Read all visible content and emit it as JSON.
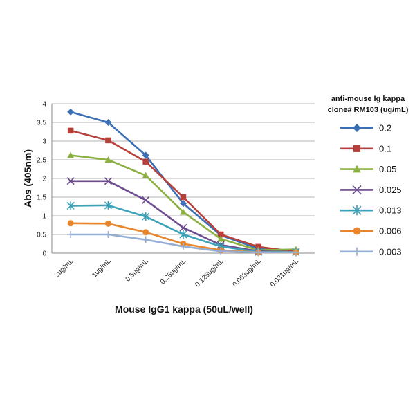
{
  "chart_data": {
    "type": "line",
    "xlabel": "Mouse IgG1 kappa (50uL/well)",
    "ylabel": "Abs (405nm)",
    "ylim": [
      0,
      4
    ],
    "yticks": [
      0,
      0.5,
      1,
      1.5,
      2,
      2.5,
      3,
      3.5,
      4
    ],
    "ytick_labels": [
      "0",
      "0.5",
      "1",
      "1.5",
      "2",
      "2.5",
      "3",
      "3.5",
      "4"
    ],
    "grid": true,
    "categories": [
      "2ug/mL",
      "1ug/mL",
      "0.5ug/mL",
      "0.25ug/mL",
      "0.125ug/mL",
      "0.063ug/mL",
      "0.031ug/mL"
    ],
    "legend": {
      "title_lines": [
        "anti-mouse Ig kappa",
        "clone# RM103 (ug/mL)"
      ],
      "position": "right"
    },
    "series": [
      {
        "name": "0.2",
        "color": "#3b6fb6",
        "marker": "diamond",
        "values": [
          3.78,
          3.5,
          2.62,
          1.33,
          0.48,
          0.12,
          0.02
        ]
      },
      {
        "name": "0.1",
        "color": "#b8403b",
        "marker": "square",
        "values": [
          3.28,
          3.02,
          2.45,
          1.5,
          0.5,
          0.17,
          0.04
        ]
      },
      {
        "name": "0.05",
        "color": "#8db043",
        "marker": "triangle",
        "values": [
          2.62,
          2.5,
          2.08,
          1.1,
          0.38,
          0.08,
          0.1
        ]
      },
      {
        "name": "0.025",
        "color": "#6c4c8e",
        "marker": "x",
        "values": [
          1.93,
          1.93,
          1.42,
          0.68,
          0.22,
          0.05,
          0.03
        ]
      },
      {
        "name": "0.013",
        "color": "#3ba3b9",
        "marker": "star",
        "values": [
          1.27,
          1.28,
          0.98,
          0.5,
          0.18,
          0.03,
          0.03
        ]
      },
      {
        "name": "0.006",
        "color": "#e8862e",
        "marker": "circle",
        "values": [
          0.8,
          0.79,
          0.56,
          0.25,
          0.08,
          0.02,
          0.02
        ]
      },
      {
        "name": "0.003",
        "color": "#95afd4",
        "marker": "plus",
        "values": [
          0.5,
          0.5,
          0.36,
          0.18,
          0.05,
          0.02,
          0.02
        ]
      }
    ]
  }
}
